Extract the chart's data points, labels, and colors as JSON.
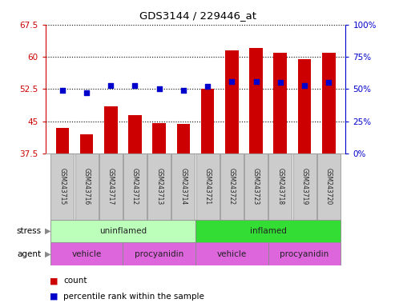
{
  "title": "GDS3144 / 229446_at",
  "samples": [
    "GSM243715",
    "GSM243716",
    "GSM243717",
    "GSM243712",
    "GSM243713",
    "GSM243714",
    "GSM243721",
    "GSM243722",
    "GSM243723",
    "GSM243718",
    "GSM243719",
    "GSM243720"
  ],
  "count_values": [
    43.5,
    42.0,
    48.5,
    46.5,
    44.5,
    44.3,
    52.5,
    61.5,
    62.0,
    61.0,
    59.5,
    61.0
  ],
  "percentile_values": [
    49,
    47,
    53,
    53,
    50,
    49,
    52,
    56,
    56,
    55,
    53,
    55
  ],
  "ylim_left": [
    37.5,
    67.5
  ],
  "ylim_right": [
    0,
    100
  ],
  "yticks_left": [
    37.5,
    45.0,
    52.5,
    60.0,
    67.5
  ],
  "yticks_right": [
    0,
    25,
    50,
    75,
    100
  ],
  "bar_color": "#cc0000",
  "dot_color": "#0000cc",
  "bar_width": 0.55,
  "stress_labels": [
    {
      "label": "uninflamed",
      "start": 0,
      "end": 6,
      "color": "#bbffbb"
    },
    {
      "label": "inflamed",
      "start": 6,
      "end": 12,
      "color": "#33dd33"
    }
  ],
  "agent_groups": [
    {
      "label": "vehicle",
      "start": 0,
      "end": 3
    },
    {
      "label": "procyanidin",
      "start": 3,
      "end": 6
    },
    {
      "label": "vehicle",
      "start": 6,
      "end": 9
    },
    {
      "label": "procyanidin",
      "start": 9,
      "end": 12
    }
  ],
  "agent_color": "#dd66dd",
  "legend_count_label": "count",
  "legend_percentile_label": "percentile rank within the sample",
  "stress_row_label": "stress",
  "agent_row_label": "agent",
  "sample_box_color": "#cccccc",
  "left_axis_color": "#cc0000",
  "right_axis_color": "#0000cc"
}
